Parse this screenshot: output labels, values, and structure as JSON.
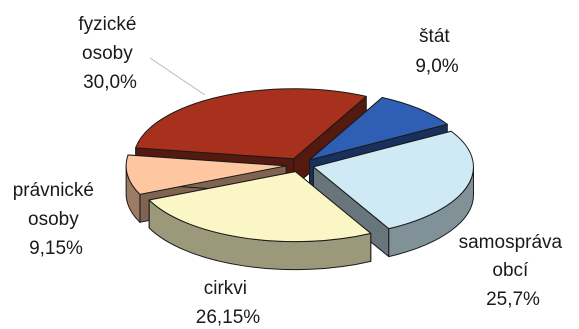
{
  "chart_data": {
    "type": "pie",
    "title": "",
    "slices": [
      {
        "label_lines": [
          "štát"
        ],
        "value_label": "9,0%",
        "value": 9.0,
        "color": "#2f5fb5"
      },
      {
        "label_lines": [
          "samospráva",
          "obcí"
        ],
        "value_label": "25,7%",
        "value": 25.7,
        "color": "#cfeaf4"
      },
      {
        "label_lines": [
          "cirkvi"
        ],
        "value_label": "26,15%",
        "value": 26.15,
        "color": "#fbf6c6"
      },
      {
        "label_lines": [
          "právnické",
          "osoby"
        ],
        "value_label": "9,15%",
        "value": 9.15,
        "color": "#ffc7a1"
      },
      {
        "label_lines": [
          "fyzické",
          "osoby"
        ],
        "value_label": "30,0%",
        "value": 30.0,
        "color": "#a8311d"
      }
    ]
  }
}
